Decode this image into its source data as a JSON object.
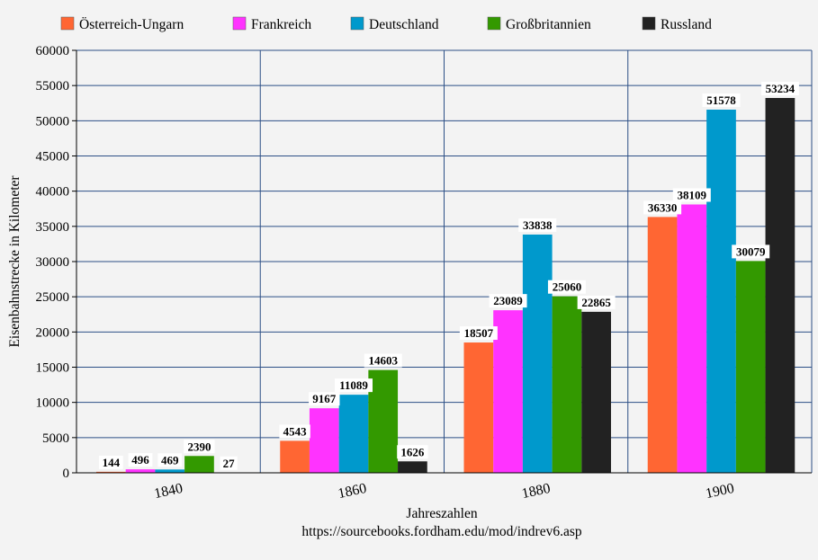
{
  "chart_data": {
    "type": "bar",
    "title": "",
    "xlabel": "Jahreszahlen",
    "ylabel": "Eisenbahnstrecke in Kilometer",
    "source": "https://sourcebooks.fordham.edu/mod/indrev6.asp",
    "categories": [
      "1840",
      "1860",
      "1880",
      "1900"
    ],
    "ylim": [
      0,
      60000
    ],
    "yticks": [
      0,
      5000,
      10000,
      15000,
      20000,
      25000,
      30000,
      35000,
      40000,
      45000,
      50000,
      55000,
      60000
    ],
    "grid": true,
    "legend_position": "top",
    "series": [
      {
        "name": "Österreich-Ungarn",
        "color": "#ff6633",
        "values": [
          144,
          4543,
          18507,
          36330
        ]
      },
      {
        "name": "Frankreich",
        "color": "#ff33ff",
        "values": [
          496,
          9167,
          23089,
          38109
        ]
      },
      {
        "name": "Deutschland",
        "color": "#0099cc",
        "values": [
          469,
          11089,
          33838,
          51578
        ]
      },
      {
        "name": "Großbritannien",
        "color": "#339900",
        "values": [
          2390,
          14603,
          25060,
          30079
        ]
      },
      {
        "name": "Russland",
        "color": "#222222",
        "values": [
          27,
          1626,
          22865,
          53234
        ]
      }
    ]
  }
}
